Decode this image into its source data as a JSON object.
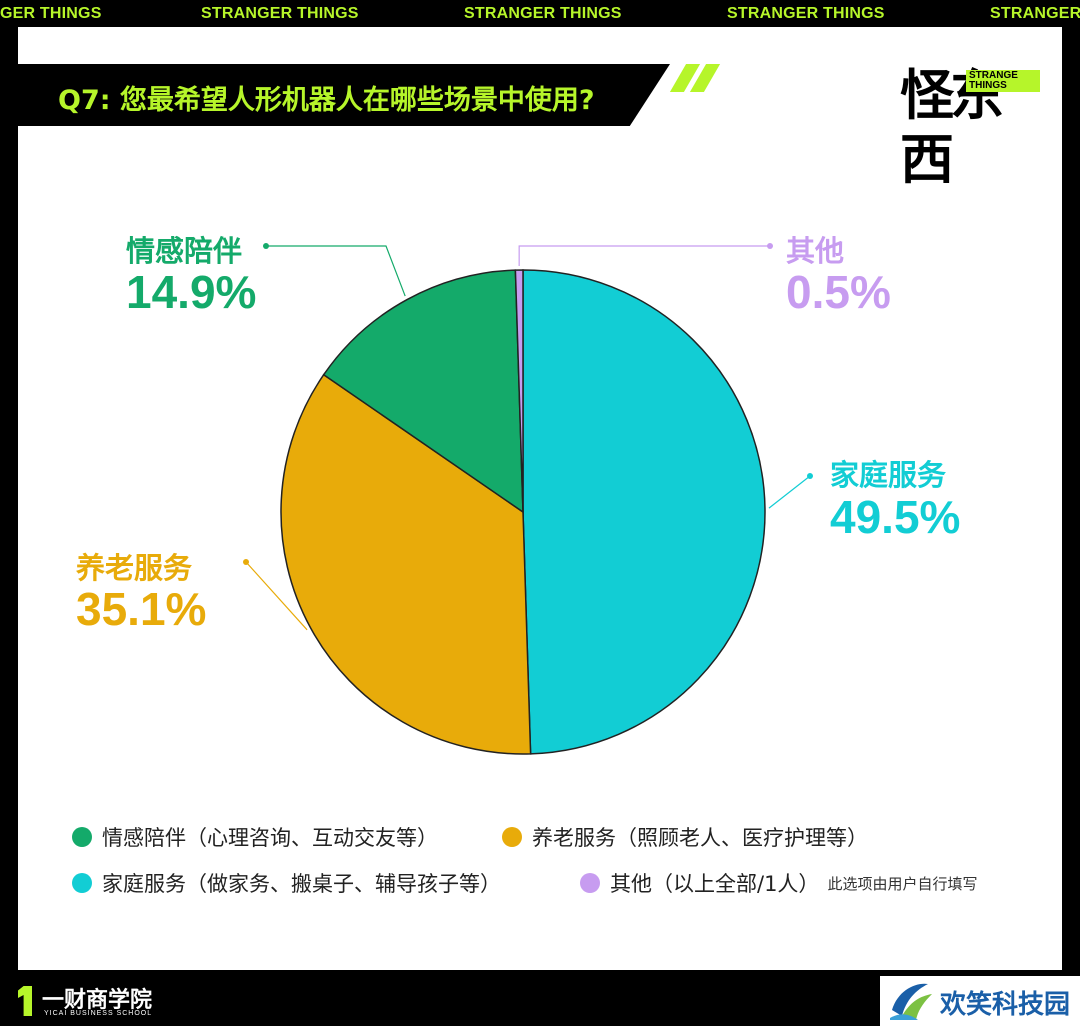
{
  "ticker_text": [
    "GER THINGS",
    "STRANGER THINGS",
    "STRANGER THINGS",
    "STRANGER THINGS",
    "STRANGER"
  ],
  "title": "Q7: 您最希望人形机器人在哪些场景中使用?",
  "brand": {
    "logo_text": "怪东西",
    "tag_text": "STRANGE THINGS",
    "accent": "#b6f52a"
  },
  "chart_data": {
    "type": "pie",
    "title": "Q7: 您最希望人形机器人在哪些场景中使用?",
    "slices": [
      {
        "label": "家庭服务",
        "value": 49.5,
        "pct_text": "49.5%",
        "color": "#12cdd4"
      },
      {
        "label": "养老服务",
        "value": 35.1,
        "pct_text": "35.1%",
        "color": "#e8ab0a"
      },
      {
        "label": "情感陪伴",
        "value": 14.9,
        "pct_text": "14.9%",
        "color": "#14aa6a"
      },
      {
        "label": "其他",
        "value": 0.5,
        "pct_text": "0.5%",
        "color": "#c79cf0"
      }
    ]
  },
  "legend": [
    {
      "text": "情感陪伴（心理咨询、互动交友等）",
      "color": "#14aa6a"
    },
    {
      "text": "养老服务（照顾老人、医疗护理等）",
      "color": "#e8ab0a"
    },
    {
      "text": "家庭服务（做家务、搬桌子、辅导孩子等）",
      "color": "#12cdd4"
    },
    {
      "text": "其他（以上全部/1人）",
      "color": "#c79cf0",
      "note": "此选项由用户自行填写"
    }
  ],
  "footer": {
    "cn": "一财商学院",
    "en": "YICAI BUSINESS SCHOOL"
  },
  "watermark": "欢笑科技园"
}
